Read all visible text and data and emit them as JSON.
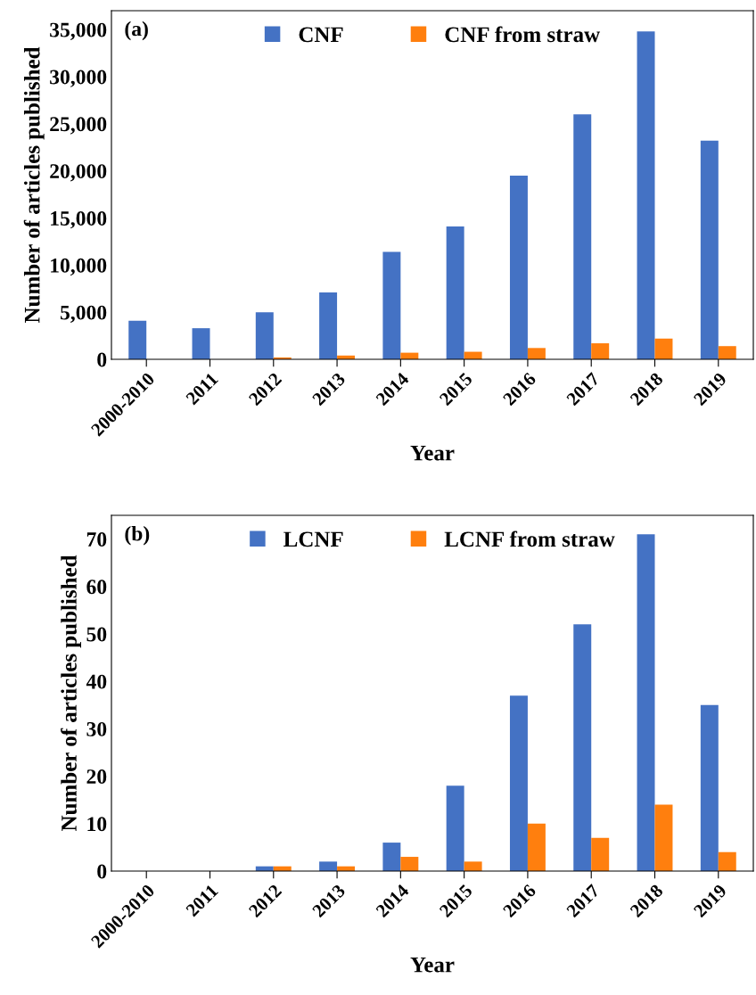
{
  "chart_data": [
    {
      "type": "bar",
      "xlabel": "Year",
      "ylabel": "Number of articles published",
      "annotations": [
        "(a)"
      ],
      "categories": [
        "2000-2010",
        "2011",
        "2012",
        "2013",
        "2014",
        "2015",
        "2016",
        "2017",
        "2018",
        "2019"
      ],
      "series": [
        {
          "name": "CNF",
          "color": "#4472c4",
          "values": [
            4100,
            3300,
            5000,
            7100,
            11400,
            14100,
            19500,
            26000,
            34800,
            23200
          ]
        },
        {
          "name": "CNF from straw",
          "color": "#ff7f0e",
          "values": [
            0,
            0,
            200,
            400,
            700,
            800,
            1200,
            1700,
            2200,
            1400
          ]
        }
      ],
      "ylim": [
        0,
        37000
      ],
      "yticks": [
        {
          "value": 0,
          "label": "0"
        },
        {
          "value": 5000,
          "label": "5,000"
        },
        {
          "value": 10000,
          "label": "10,000"
        },
        {
          "value": 15000,
          "label": "15,000"
        },
        {
          "value": 20000,
          "label": "20,000"
        },
        {
          "value": 25000,
          "label": "25,000"
        },
        {
          "value": 30000,
          "label": "30,000"
        },
        {
          "value": 35000,
          "label": "35,000"
        }
      ],
      "legend": "top",
      "grid": false
    },
    {
      "type": "bar",
      "xlabel": "Year",
      "ylabel": "Number of articles published",
      "annotations": [
        "(b)"
      ],
      "categories": [
        "2000-2010",
        "2011",
        "2012",
        "2013",
        "2014",
        "2015",
        "2016",
        "2017",
        "2018",
        "2019"
      ],
      "series": [
        {
          "name": "LCNF",
          "color": "#4472c4",
          "values": [
            0,
            0,
            1,
            2,
            6,
            18,
            37,
            52,
            71,
            35
          ]
        },
        {
          "name": "LCNF from straw",
          "color": "#ff7f0e",
          "values": [
            0,
            0,
            1,
            1,
            3,
            2,
            10,
            7,
            14,
            4
          ]
        }
      ],
      "ylim": [
        0,
        75
      ],
      "yticks": [
        0,
        10,
        20,
        30,
        40,
        50,
        60,
        70
      ],
      "legend": "top",
      "grid": false
    }
  ]
}
